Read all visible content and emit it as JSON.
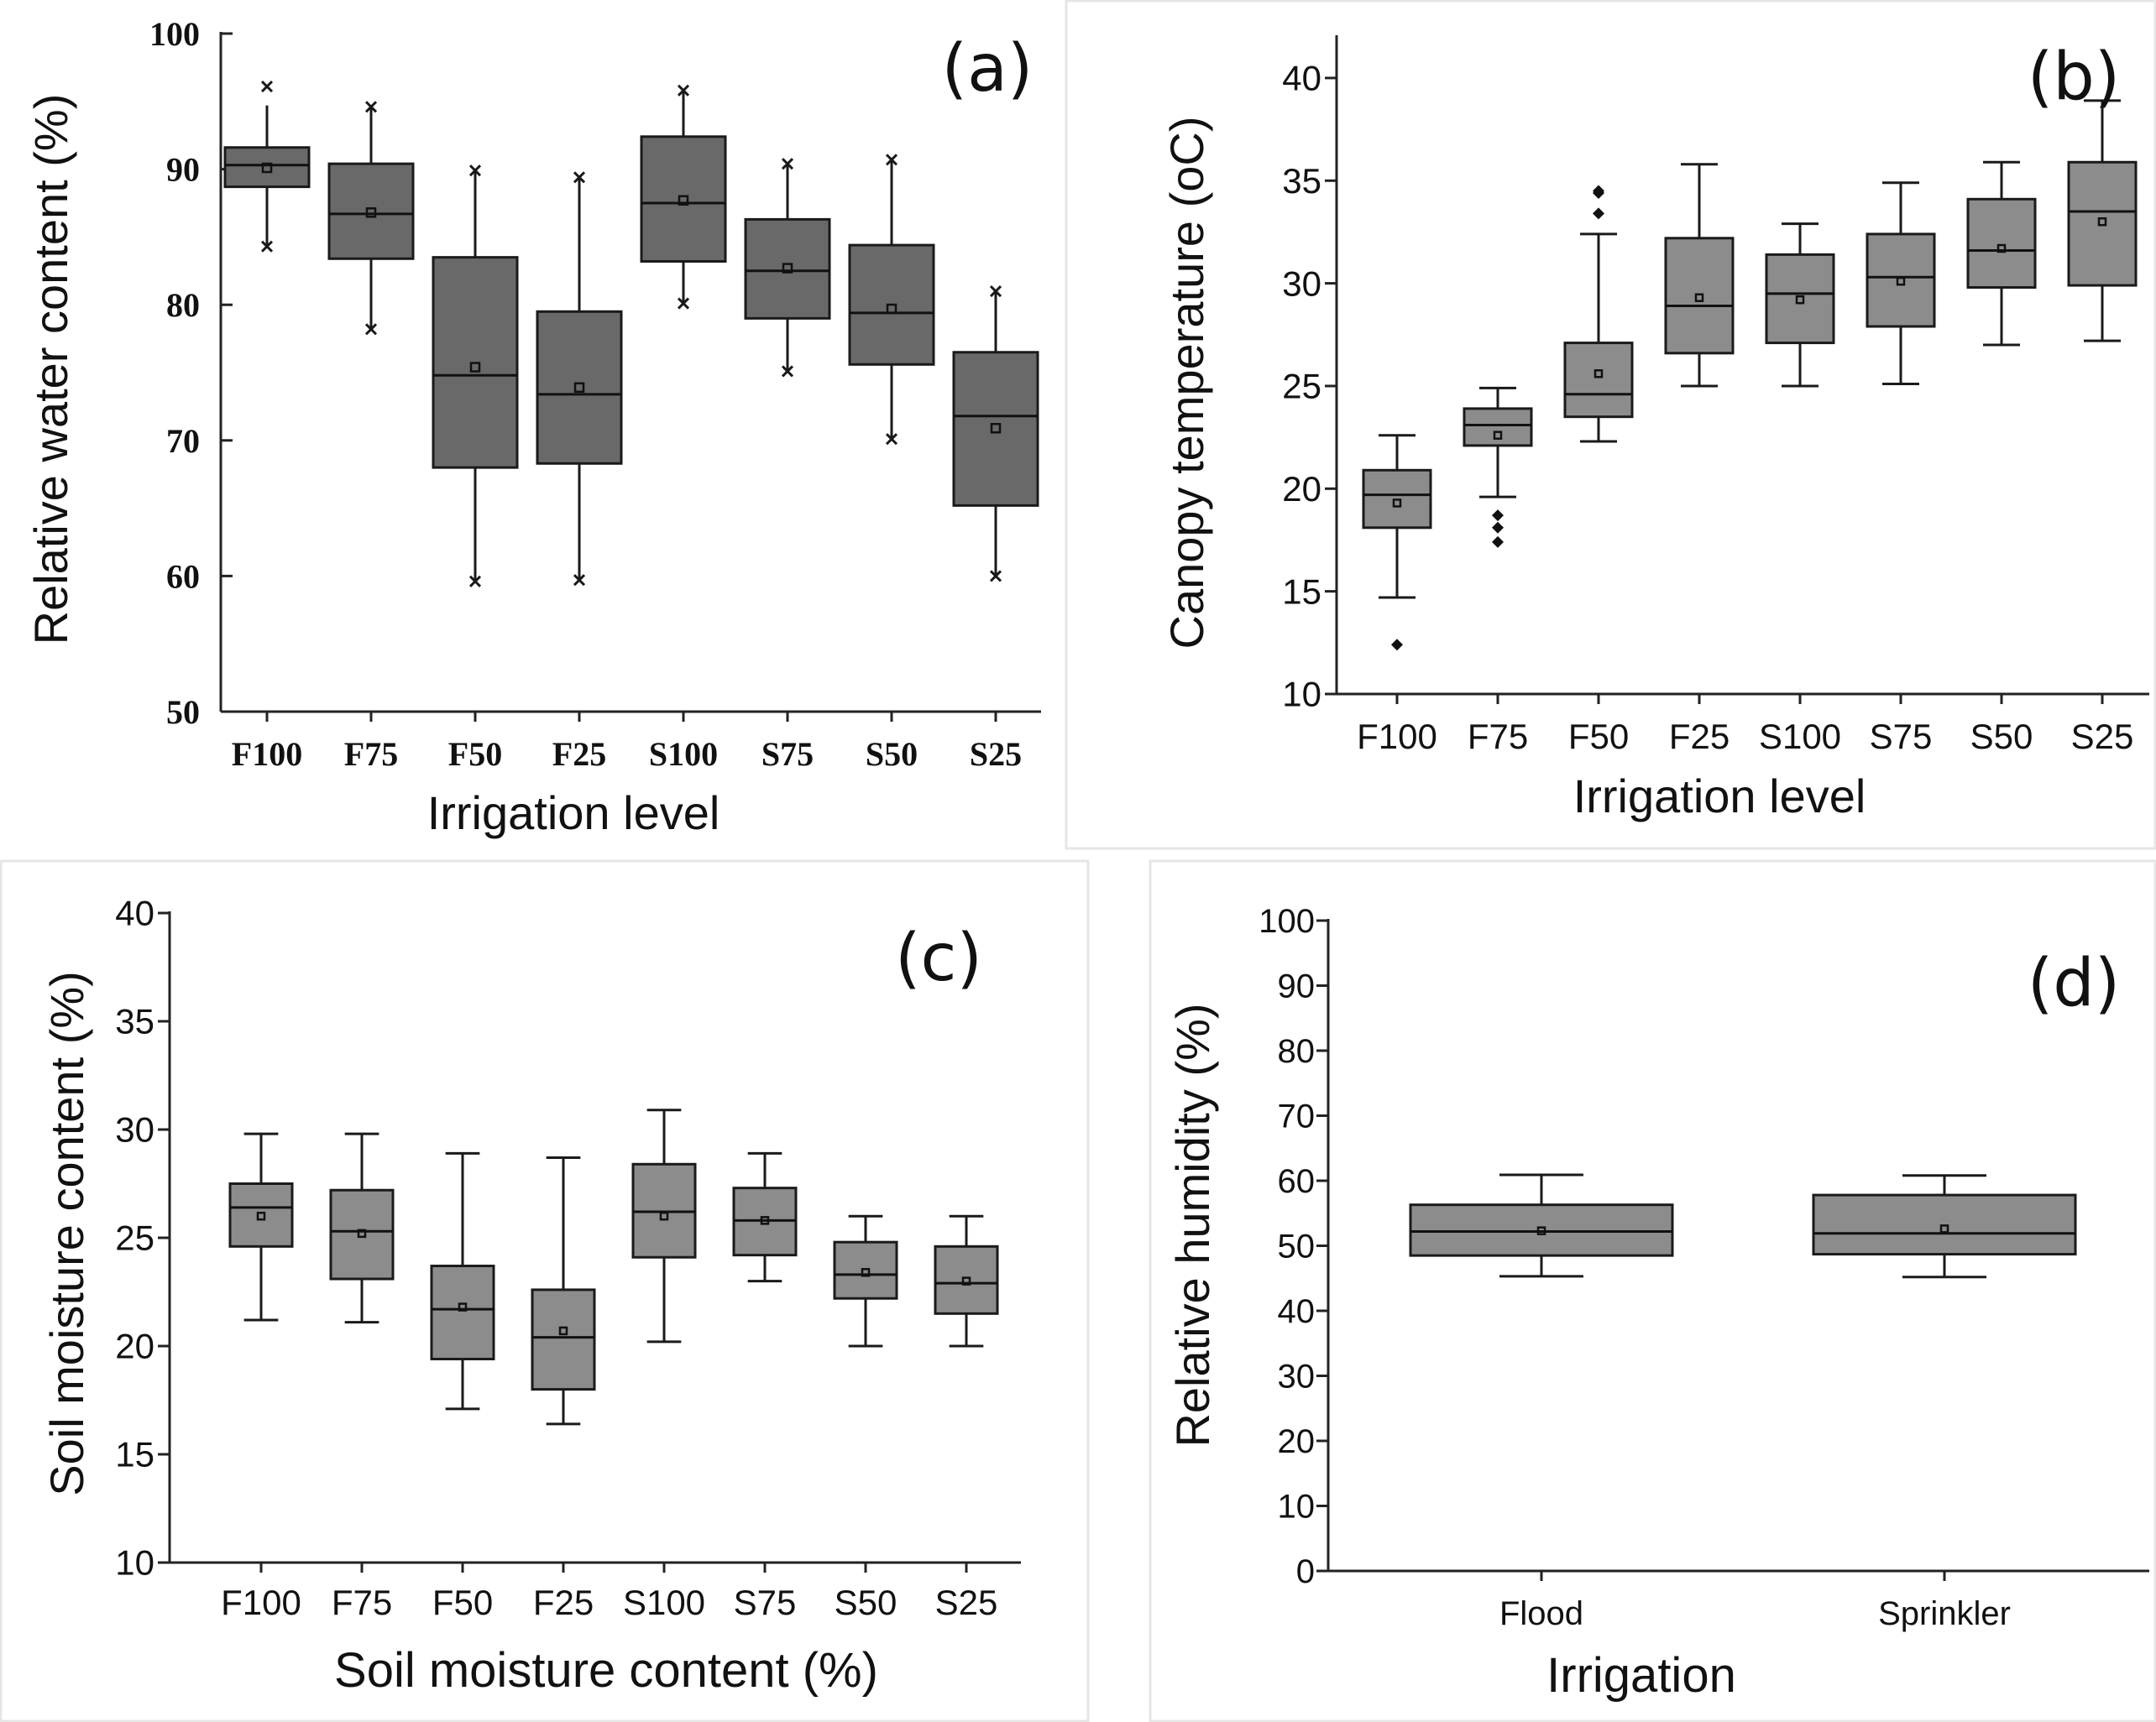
{
  "chart_data": [
    {
      "id": "a",
      "type": "box",
      "panel_label": "(a)",
      "xlabel": "Irrigation level",
      "ylabel": "Relative water content (%)",
      "ylim": [
        50,
        100
      ],
      "yticks": [
        50,
        60,
        70,
        80,
        90,
        100
      ],
      "categories": [
        "F100",
        "F75",
        "F50",
        "F25",
        "S100",
        "S75",
        "S50",
        "S25"
      ],
      "boxes": [
        {
          "q1": 88.7,
          "median": 90.3,
          "q3": 91.6,
          "mean": 90.1,
          "whisker_low": 84.3,
          "whisker_high": 94.7,
          "extremes": [
            84.3,
            96.1
          ]
        },
        {
          "q1": 83.4,
          "median": 86.7,
          "q3": 90.4,
          "mean": 86.8,
          "whisker_low": 78.2,
          "whisker_high": 94.6,
          "extremes": [
            78.2,
            94.6
          ]
        },
        {
          "q1": 68.0,
          "median": 74.8,
          "q3": 83.5,
          "mean": 75.4,
          "whisker_low": 59.6,
          "whisker_high": 89.9,
          "extremes": [
            59.6,
            89.9
          ]
        },
        {
          "q1": 68.3,
          "median": 73.4,
          "q3": 79.5,
          "mean": 73.9,
          "whisker_low": 59.7,
          "whisker_high": 89.4,
          "extremes": [
            59.7,
            89.4
          ]
        },
        {
          "q1": 83.2,
          "median": 87.5,
          "q3": 92.4,
          "mean": 87.7,
          "whisker_low": 80.1,
          "whisker_high": 95.8,
          "extremes": [
            80.1,
            95.8
          ]
        },
        {
          "q1": 79.0,
          "median": 82.5,
          "q3": 86.3,
          "mean": 82.7,
          "whisker_low": 75.1,
          "whisker_high": 90.4,
          "extremes": [
            75.1,
            90.4
          ]
        },
        {
          "q1": 75.6,
          "median": 79.4,
          "q3": 84.4,
          "mean": 79.7,
          "whisker_low": 70.1,
          "whisker_high": 90.7,
          "extremes": [
            70.1,
            90.7
          ]
        },
        {
          "q1": 65.2,
          "median": 71.8,
          "q3": 76.5,
          "mean": 70.9,
          "whisker_low": 60.0,
          "whisker_high": 81.0,
          "extremes": [
            60.0,
            81.0
          ]
        }
      ]
    },
    {
      "id": "b",
      "type": "box",
      "panel_label": "(b)",
      "xlabel": "Irrigation level",
      "ylabel": "Canopy temperature (oC)",
      "ylim": [
        10,
        42
      ],
      "yticks": [
        10,
        15,
        20,
        25,
        30,
        35,
        40
      ],
      "categories": [
        "F100",
        "F75",
        "F50",
        "F25",
        "S100",
        "S75",
        "S50",
        "S25"
      ],
      "boxes": [
        {
          "q1": 18.1,
          "median": 19.7,
          "q3": 20.9,
          "mean": 19.3,
          "whisker_low": 14.7,
          "whisker_high": 22.6,
          "outliers": [
            12.4
          ]
        },
        {
          "q1": 22.1,
          "median": 23.1,
          "q3": 23.9,
          "mean": 22.6,
          "whisker_low": 19.6,
          "whisker_high": 24.9,
          "outliers": [
            18.7,
            18.1,
            17.4
          ]
        },
        {
          "q1": 23.5,
          "median": 24.6,
          "q3": 27.1,
          "mean": 25.6,
          "whisker_low": 22.3,
          "whisker_high": 32.4,
          "outliers": [
            34.4,
            34.5,
            33.4
          ]
        },
        {
          "q1": 26.6,
          "median": 28.9,
          "q3": 32.2,
          "mean": 29.3,
          "whisker_low": 25.0,
          "whisker_high": 35.8,
          "outliers": []
        },
        {
          "q1": 27.1,
          "median": 29.5,
          "q3": 31.4,
          "mean": 29.2,
          "whisker_low": 25.0,
          "whisker_high": 32.9,
          "outliers": []
        },
        {
          "q1": 27.9,
          "median": 30.3,
          "q3": 32.4,
          "mean": 30.1,
          "whisker_low": 25.1,
          "whisker_high": 34.9,
          "outliers": []
        },
        {
          "q1": 29.8,
          "median": 31.6,
          "q3": 34.1,
          "mean": 31.7,
          "whisker_low": 27.0,
          "whisker_high": 35.9,
          "outliers": []
        },
        {
          "q1": 29.9,
          "median": 33.5,
          "q3": 35.9,
          "mean": 33.0,
          "whisker_low": 27.2,
          "whisker_high": 38.9,
          "outliers": []
        }
      ]
    },
    {
      "id": "c",
      "type": "box",
      "panel_label": "(c)",
      "xlabel": "Soil moisture content (%)",
      "ylabel": "Soil moisture content (%)",
      "ylim": [
        10,
        40
      ],
      "yticks": [
        10,
        15,
        20,
        25,
        30,
        35,
        40
      ],
      "categories": [
        "F100",
        "F75",
        "F50",
        "F25",
        "S100",
        "S75",
        "S50",
        "S25"
      ],
      "boxes": [
        {
          "q1": 24.6,
          "median": 26.4,
          "q3": 27.5,
          "mean": 26.0,
          "whisker_low": 21.2,
          "whisker_high": 29.8
        },
        {
          "q1": 23.1,
          "median": 25.3,
          "q3": 27.2,
          "mean": 25.2,
          "whisker_low": 21.1,
          "whisker_high": 29.8
        },
        {
          "q1": 19.4,
          "median": 21.7,
          "q3": 23.7,
          "mean": 21.8,
          "whisker_low": 17.1,
          "whisker_high": 28.9
        },
        {
          "q1": 18.0,
          "median": 20.4,
          "q3": 22.6,
          "mean": 20.7,
          "whisker_low": 16.4,
          "whisker_high": 28.7
        },
        {
          "q1": 24.1,
          "median": 26.2,
          "q3": 28.4,
          "mean": 26.0,
          "whisker_low": 20.2,
          "whisker_high": 30.9
        },
        {
          "q1": 24.2,
          "median": 25.8,
          "q3": 27.3,
          "mean": 25.8,
          "whisker_low": 23.0,
          "whisker_high": 28.9
        },
        {
          "q1": 22.2,
          "median": 23.3,
          "q3": 24.8,
          "mean": 23.4,
          "whisker_low": 20.0,
          "whisker_high": 26.0
        },
        {
          "q1": 21.5,
          "median": 22.9,
          "q3": 24.6,
          "mean": 23.0,
          "whisker_low": 20.0,
          "whisker_high": 26.0
        }
      ]
    },
    {
      "id": "d",
      "type": "box",
      "panel_label": "(d)",
      "xlabel": "Irrigation",
      "ylabel": "Relative humidity (%)",
      "ylim": [
        0,
        100
      ],
      "yticks": [
        0,
        10,
        20,
        30,
        40,
        50,
        60,
        70,
        80,
        90,
        100
      ],
      "categories": [
        "Flood",
        "Sprinkler"
      ],
      "boxes": [
        {
          "q1": 48.5,
          "median": 52.2,
          "q3": 56.3,
          "mean": 52.3,
          "whisker_low": 45.3,
          "whisker_high": 60.9
        },
        {
          "q1": 48.7,
          "median": 51.9,
          "q3": 57.8,
          "mean": 52.6,
          "whisker_low": 45.2,
          "whisker_high": 60.8
        }
      ]
    }
  ]
}
